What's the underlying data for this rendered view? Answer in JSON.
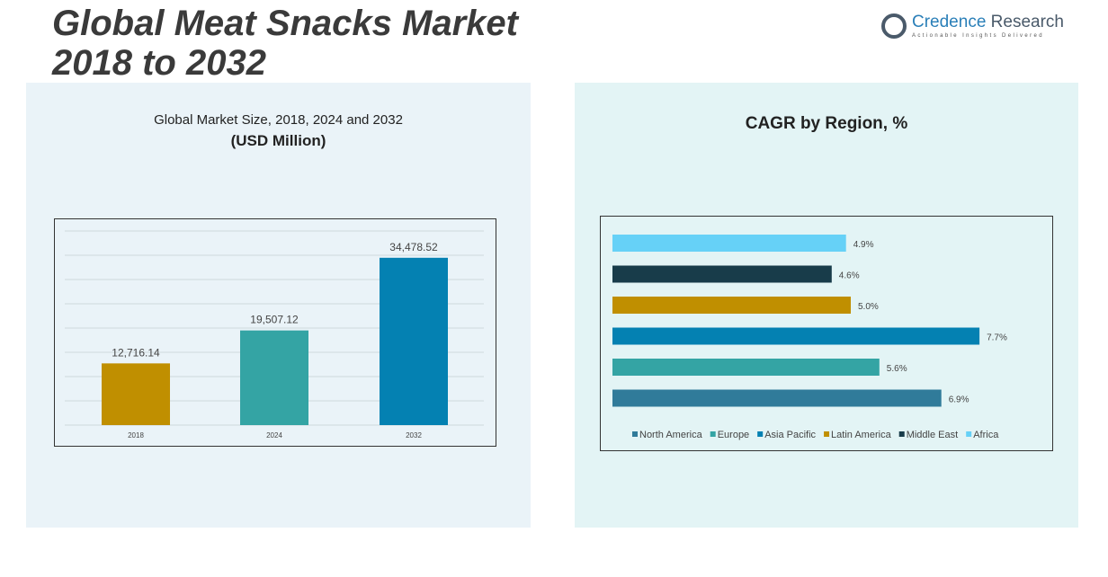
{
  "title_line1": "Global Meat Snacks Market",
  "title_line2": "2018 to 2032",
  "logo": {
    "name_a": "Credence",
    "name_b": " Research",
    "tagline": "Actionable Insights Delivered"
  },
  "chart_data": [
    {
      "type": "bar",
      "title": "Global Market Size, 2018, 2024 and 2032",
      "subtitle": "(USD Million)",
      "categories": [
        "2018",
        "2024",
        "2032"
      ],
      "values": [
        12716.14,
        19507.12,
        34478.52
      ],
      "labels": [
        "12,716.14",
        "19,507.12",
        "34,478.52"
      ],
      "colors": [
        "#c08f00",
        "#34a4a4",
        "#0481b2"
      ],
      "ylim": [
        0,
        40000
      ],
      "grid": true
    },
    {
      "type": "bar",
      "orientation": "horizontal",
      "title": "CAGR by Region, %",
      "categories": [
        "Africa",
        "Middle East",
        "Latin America",
        "Asia Pacific",
        "Europe",
        "North America"
      ],
      "values": [
        4.9,
        4.6,
        5.0,
        7.7,
        5.6,
        6.9
      ],
      "labels": [
        "4.9%",
        "4.6%",
        "5.0%",
        "7.7%",
        "5.6%",
        "6.9%"
      ],
      "colors": [
        "#66d1f7",
        "#183c4a",
        "#c08f00",
        "#0481b2",
        "#34a4a4",
        "#307b9a"
      ],
      "legend": [
        {
          "name": "North America",
          "color": "#307b9a"
        },
        {
          "name": "Europe",
          "color": "#34a4a4"
        },
        {
          "name": "Asia Pacific",
          "color": "#0481b2"
        },
        {
          "name": "Latin America",
          "color": "#c08f00"
        },
        {
          "name": "Middle East",
          "color": "#183c4a"
        },
        {
          "name": "Africa",
          "color": "#66d1f7"
        }
      ],
      "legend_position": "bottom"
    }
  ]
}
